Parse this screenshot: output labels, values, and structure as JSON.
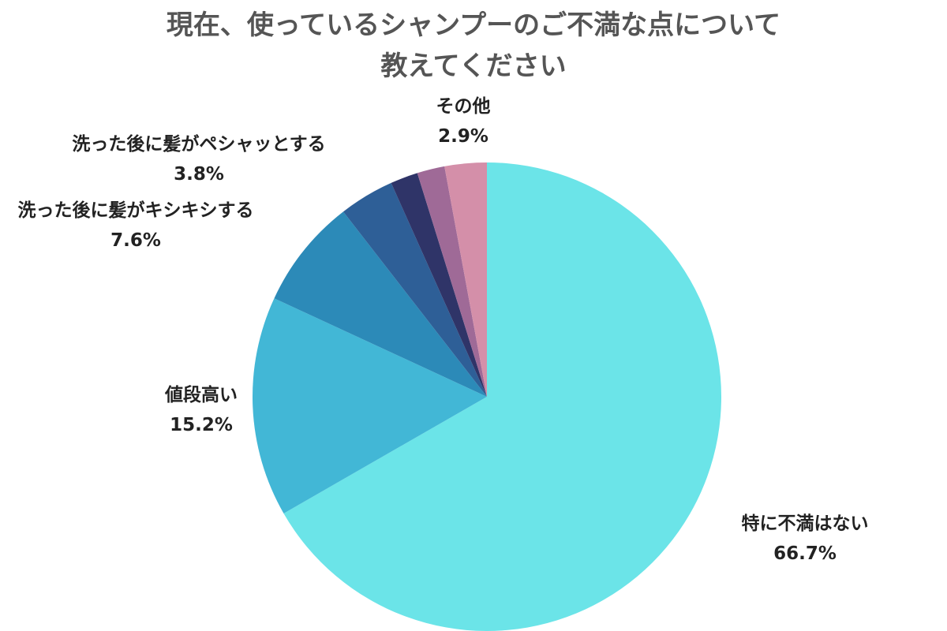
{
  "chart_data": {
    "type": "pie",
    "title_lines": [
      "現在、使っているシャンプーのご不満な点について",
      "教えてください"
    ],
    "slices": [
      {
        "label": "特に不満はない",
        "value": 66.7,
        "value_label": "66.7%",
        "color": "#6BE4E8"
      },
      {
        "label": "値段高い",
        "value": 15.2,
        "value_label": "15.2%",
        "color": "#42B7D6"
      },
      {
        "label": "洗った後に髪がキシキシする",
        "value": 7.6,
        "value_label": "7.6%",
        "color": "#2C8AB8"
      },
      {
        "label": "洗った後に髪がペシャッとする",
        "value": 3.8,
        "value_label": "3.8%",
        "color": "#2E5F97"
      },
      {
        "label": "",
        "value": 1.9,
        "value_label": "",
        "color": "#2F3468"
      },
      {
        "label": "",
        "value": 1.9,
        "value_label": "",
        "color": "#9F6A97"
      },
      {
        "label": "その他",
        "value": 2.9,
        "value_label": "2.9%",
        "color": "#D48FA9"
      }
    ],
    "start": "top",
    "direction": "clockwise",
    "legend": "none"
  }
}
